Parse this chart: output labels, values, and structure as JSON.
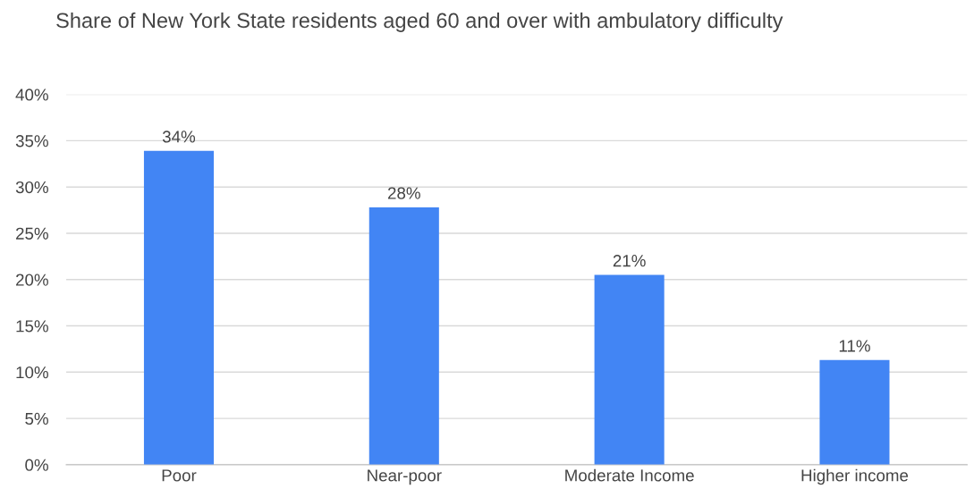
{
  "chart_data": {
    "type": "bar",
    "title": "Share of New York State residents aged 60 and over with ambulatory difficulty",
    "categories": [
      "Poor",
      "Near-poor",
      "Moderate Income",
      "Higher income"
    ],
    "values": [
      33.9,
      27.8,
      20.5,
      11.3
    ],
    "value_labels": [
      "34%",
      "28%",
      "21%",
      "11%"
    ],
    "color": "#4285f4",
    "ylim": [
      0,
      40
    ],
    "yticks": [
      {
        "value": 0,
        "label": "0%"
      },
      {
        "value": 5,
        "label": "5%"
      },
      {
        "value": 10,
        "label": "10%"
      },
      {
        "value": 15,
        "label": "15%"
      },
      {
        "value": 20,
        "label": "20%"
      },
      {
        "value": 25,
        "label": "25%"
      },
      {
        "value": 30,
        "label": "30%"
      },
      {
        "value": 35,
        "label": "35%"
      },
      {
        "value": 40,
        "label": "40%"
      }
    ],
    "grid": "y",
    "legend": false
  }
}
